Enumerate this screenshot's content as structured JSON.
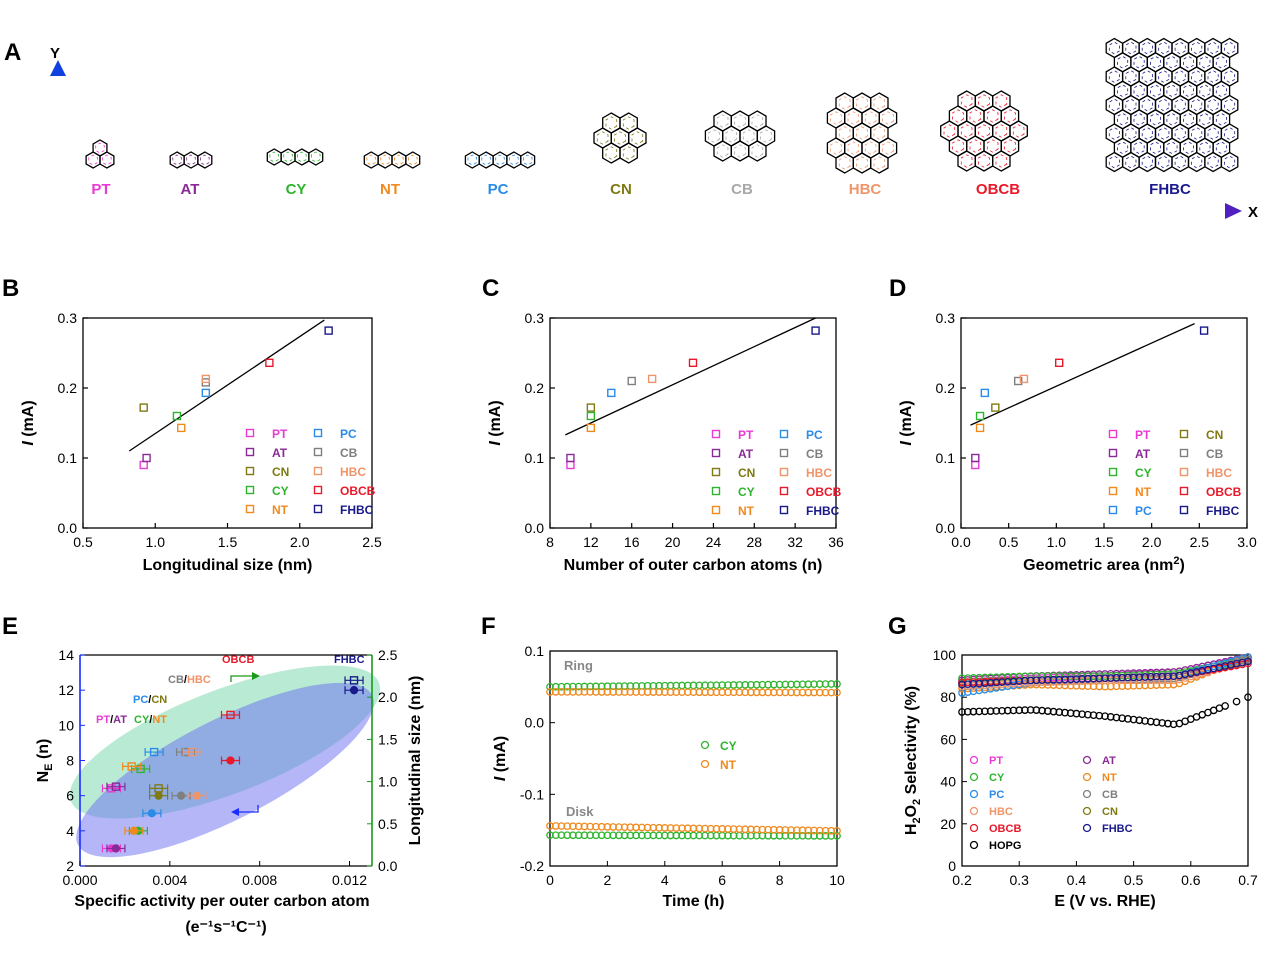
{
  "panelA": {
    "letter": "A",
    "y_axis_label": "Y",
    "x_axis_label": "X",
    "molecules": [
      {
        "name": "PT",
        "color": "#e83ad4"
      },
      {
        "name": "AT",
        "color": "#8a2a96"
      },
      {
        "name": "CY",
        "color": "#2fb42f"
      },
      {
        "name": "NT",
        "color": "#f08a1e"
      },
      {
        "name": "PC",
        "color": "#2a8be8"
      },
      {
        "name": "CN",
        "color": "#7f7a12"
      },
      {
        "name": "CB",
        "color": "#a8a8a8"
      },
      {
        "name": "HBC",
        "color": "#f0956a"
      },
      {
        "name": "OBCB",
        "color": "#e8192a"
      },
      {
        "name": "FHBC",
        "color": "#1a1a8c"
      }
    ]
  },
  "series_colors": {
    "PT": "#e83ad4",
    "AT": "#8a2a96",
    "CY": "#2fb42f",
    "NT": "#f08a1e",
    "PC": "#2a8be8",
    "CN": "#7f7a12",
    "CB": "#7f7f7f",
    "HBC": "#f0956a",
    "OBCB": "#e8192a",
    "FHBC": "#1a1a8c",
    "HOPG": "#000000"
  },
  "chart_data": [
    {
      "id": "B",
      "letter": "B",
      "type": "scatter",
      "xlabel": "Longitudinal size (nm)",
      "ylabel_italic": "I",
      "ylabel_rest": " (mA)",
      "xlim": [
        0.5,
        2.5
      ],
      "ylim": [
        0,
        0.3
      ],
      "xticks": [
        "0.5",
        "1.0",
        "1.5",
        "2.0",
        "2.5"
      ],
      "yticks": [
        "0.0",
        "0.1",
        "0.2",
        "0.3"
      ],
      "points": [
        {
          "name": "PT",
          "x": 0.92,
          "y": 0.09
        },
        {
          "name": "AT",
          "x": 0.94,
          "y": 0.1
        },
        {
          "name": "CN",
          "x": 0.92,
          "y": 0.172
        },
        {
          "name": "CY",
          "x": 1.15,
          "y": 0.16
        },
        {
          "name": "NT",
          "x": 1.18,
          "y": 0.143
        },
        {
          "name": "PC",
          "x": 1.35,
          "y": 0.193
        },
        {
          "name": "CB",
          "x": 1.35,
          "y": 0.208
        },
        {
          "name": "HBC",
          "x": 1.35,
          "y": 0.213
        },
        {
          "name": "OBCB",
          "x": 1.79,
          "y": 0.236
        },
        {
          "name": "FHBC",
          "x": 2.2,
          "y": 0.282
        }
      ],
      "fit": {
        "x": [
          0.82,
          2.17
        ],
        "y": [
          0.11,
          0.297
        ]
      },
      "legend": [
        [
          "PT",
          "PC"
        ],
        [
          "AT",
          "CB"
        ],
        [
          "CN",
          "HBC"
        ],
        [
          "CY",
          "OBCB"
        ],
        [
          "NT",
          "FHBC"
        ]
      ]
    },
    {
      "id": "C",
      "letter": "C",
      "type": "scatter",
      "xlabel": "Number of outer carbon atoms (n)",
      "ylabel_italic": "I",
      "ylabel_rest": " (mA)",
      "xlim": [
        8,
        36
      ],
      "ylim": [
        0,
        0.3
      ],
      "xticks": [
        "8",
        "12",
        "16",
        "20",
        "24",
        "28",
        "32",
        "36"
      ],
      "yticks": [
        "0.0",
        "0.1",
        "0.2",
        "0.3"
      ],
      "points": [
        {
          "name": "PT",
          "x": 10,
          "y": 0.09
        },
        {
          "name": "AT",
          "x": 10,
          "y": 0.1
        },
        {
          "name": "CN",
          "x": 12,
          "y": 0.172
        },
        {
          "name": "CY",
          "x": 12,
          "y": 0.16
        },
        {
          "name": "NT",
          "x": 12,
          "y": 0.143
        },
        {
          "name": "PC",
          "x": 14,
          "y": 0.193
        },
        {
          "name": "CB",
          "x": 16,
          "y": 0.21
        },
        {
          "name": "HBC",
          "x": 18,
          "y": 0.213
        },
        {
          "name": "OBCB",
          "x": 22,
          "y": 0.236
        },
        {
          "name": "FHBC",
          "x": 34,
          "y": 0.282
        }
      ],
      "fit": {
        "x": [
          9.5,
          34
        ],
        "y": [
          0.133,
          0.3
        ]
      },
      "legend": [
        [
          "PT",
          "PC"
        ],
        [
          "AT",
          "CB"
        ],
        [
          "CN",
          "HBC"
        ],
        [
          "CY",
          "OBCB"
        ],
        [
          "NT",
          "FHBC"
        ]
      ]
    },
    {
      "id": "D",
      "letter": "D",
      "type": "scatter",
      "xlabel": "Geometric area (nm",
      "xlabel_sup": "2",
      "xlabel_end": ")",
      "ylabel_italic": "I",
      "ylabel_rest": " (mA)",
      "xlim": [
        0,
        3
      ],
      "ylim": [
        0,
        0.3
      ],
      "xticks": [
        "0.0",
        "0.5",
        "1.0",
        "1.5",
        "2.0",
        "2.5",
        "3.0"
      ],
      "yticks": [
        "0.0",
        "0.1",
        "0.2",
        "0.3"
      ],
      "points": [
        {
          "name": "PT",
          "x": 0.15,
          "y": 0.09
        },
        {
          "name": "AT",
          "x": 0.15,
          "y": 0.1
        },
        {
          "name": "CY",
          "x": 0.2,
          "y": 0.16
        },
        {
          "name": "NT",
          "x": 0.2,
          "y": 0.143
        },
        {
          "name": "PC",
          "x": 0.25,
          "y": 0.193
        },
        {
          "name": "CN",
          "x": 0.36,
          "y": 0.172
        },
        {
          "name": "CB",
          "x": 0.6,
          "y": 0.21
        },
        {
          "name": "HBC",
          "x": 0.66,
          "y": 0.213
        },
        {
          "name": "OBCB",
          "x": 1.03,
          "y": 0.236
        },
        {
          "name": "FHBC",
          "x": 2.55,
          "y": 0.282
        }
      ],
      "fit": {
        "x": [
          0.1,
          2.45
        ],
        "y": [
          0.147,
          0.292
        ]
      },
      "legend": [
        [
          "PT",
          "CN"
        ],
        [
          "AT",
          "CB"
        ],
        [
          "CY",
          "HBC"
        ],
        [
          "NT",
          "OBCB"
        ],
        [
          "PC",
          "FHBC"
        ]
      ]
    },
    {
      "id": "E",
      "letter": "E",
      "type": "scatter",
      "xlabel": "Specific activity per outer carbon atom",
      "xlabel2": "(e⁻¹s⁻¹C⁻¹)",
      "ylabel_left": "N",
      "ylabel_left_sub": "E",
      "ylabel_left_rest": " (n)",
      "ylabel_right": "Longitudinal size (nm)",
      "xlim": [
        0,
        0.013
      ],
      "ylim_left": [
        2,
        14
      ],
      "ylim_right": [
        0,
        2.5
      ],
      "xticks": [
        "0.000",
        "0.004",
        "0.008",
        "0.012"
      ],
      "xtick_values": [
        0,
        0.004,
        0.008,
        0.012
      ],
      "yticks_left": [
        "2",
        "4",
        "6",
        "8",
        "10",
        "12",
        "14"
      ],
      "yticks_right": [
        "0.0",
        "0.5",
        "1.0",
        "1.5",
        "2.0",
        "2.5"
      ],
      "annotations": [
        "PT/AT",
        "CY/NT",
        "PC/CN",
        "CB/HBC",
        "OBCB",
        "FHBC"
      ],
      "left_series": [
        {
          "name": "PT",
          "x": 0.0014,
          "y": 3
        },
        {
          "name": "AT",
          "x": 0.0016,
          "y": 3
        },
        {
          "name": "CY",
          "x": 0.0026,
          "y": 4
        },
        {
          "name": "NT",
          "x": 0.0024,
          "y": 4
        },
        {
          "name": "PC",
          "x": 0.0032,
          "y": 5
        },
        {
          "name": "CN",
          "x": 0.0035,
          "y": 6
        },
        {
          "name": "CB",
          "x": 0.0045,
          "y": 6
        },
        {
          "name": "HBC",
          "x": 0.0052,
          "y": 6
        },
        {
          "name": "OBCB",
          "x": 0.0067,
          "y": 8
        },
        {
          "name": "FHBC",
          "x": 0.0122,
          "y": 12
        }
      ],
      "right_series": [
        {
          "name": "PT",
          "x": 0.0014,
          "y": 0.92
        },
        {
          "name": "AT",
          "x": 0.0016,
          "y": 0.94
        },
        {
          "name": "CY",
          "x": 0.0027,
          "y": 1.15
        },
        {
          "name": "NT",
          "x": 0.0023,
          "y": 1.18
        },
        {
          "name": "PC",
          "x": 0.0033,
          "y": 1.35
        },
        {
          "name": "CN",
          "x": 0.0035,
          "y": 0.92
        },
        {
          "name": "CB",
          "x": 0.0047,
          "y": 1.35
        },
        {
          "name": "HBC",
          "x": 0.005,
          "y": 1.35
        },
        {
          "name": "OBCB",
          "x": 0.0067,
          "y": 1.79
        },
        {
          "name": "FHBC",
          "x": 0.0122,
          "y": 2.2
        }
      ]
    },
    {
      "id": "F",
      "letter": "F",
      "type": "line",
      "xlabel": "Time (h)",
      "ylabel_italic": "I",
      "ylabel_rest": " (mA)",
      "xlim": [
        0,
        10
      ],
      "ylim": [
        -0.2,
        0.1
      ],
      "xticks": [
        "0",
        "2",
        "4",
        "6",
        "8",
        "10"
      ],
      "yticks": [
        "-0.2",
        "-0.1",
        "0.0",
        "0.1"
      ],
      "annotations": [
        "Ring",
        "Disk"
      ],
      "series": [
        {
          "name": "CY",
          "ring": [
            0.05,
            0.054
          ],
          "disk": [
            -0.157,
            -0.158
          ]
        },
        {
          "name": "NT",
          "ring": [
            0.043,
            0.042
          ],
          "disk": [
            -0.144,
            -0.151
          ]
        }
      ]
    },
    {
      "id": "G",
      "letter": "G",
      "type": "line",
      "xlabel": "E (V vs. RHE)",
      "ylabel": "H2O2 Selectivity (%)",
      "xlim": [
        0.2,
        0.7
      ],
      "ylim": [
        0,
        100
      ],
      "xticks": [
        "0.2",
        "0.3",
        "0.4",
        "0.5",
        "0.6",
        "0.7"
      ],
      "yticks": [
        "0",
        "20",
        "40",
        "60",
        "80",
        "100"
      ],
      "legend": [
        [
          "PT",
          "AT"
        ],
        [
          "CY",
          "NT"
        ],
        [
          "PC",
          "CB"
        ],
        [
          "HBC",
          "CN"
        ],
        [
          "OBCB",
          "FHBC"
        ],
        [
          "HOPG",
          ""
        ]
      ],
      "series": [
        {
          "name": "PT",
          "y": [
            87,
            89,
            90,
            92,
            99
          ]
        },
        {
          "name": "AT",
          "y": [
            88,
            90,
            91,
            92,
            99
          ]
        },
        {
          "name": "CY",
          "y": [
            89,
            90,
            90,
            91,
            98
          ]
        },
        {
          "name": "NT",
          "y": [
            84,
            86,
            85,
            86,
            99
          ]
        },
        {
          "name": "PC",
          "y": [
            82,
            87,
            89,
            90,
            99
          ]
        },
        {
          "name": "CB",
          "y": [
            85,
            87,
            88,
            89,
            98
          ]
        },
        {
          "name": "HBC",
          "y": [
            85,
            87,
            88,
            88,
            97
          ]
        },
        {
          "name": "CN",
          "y": [
            87,
            88,
            89,
            90,
            97
          ]
        },
        {
          "name": "OBCB",
          "y": [
            87,
            88,
            89,
            90,
            96
          ]
        },
        {
          "name": "FHBC",
          "y": [
            86,
            88,
            89,
            90,
            97
          ]
        },
        {
          "name": "HOPG",
          "y": [
            73,
            74,
            71,
            67,
            80
          ]
        }
      ]
    }
  ]
}
